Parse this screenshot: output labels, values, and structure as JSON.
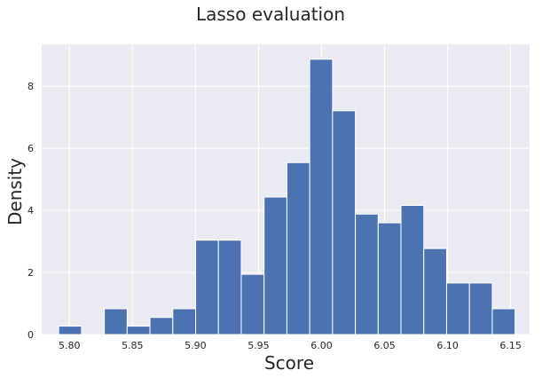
{
  "chart_data": {
    "type": "bar",
    "subtype": "histogram",
    "title": "Lasso evaluation",
    "xlabel": "Score",
    "ylabel": "Density",
    "xlim": [
      5.778,
      6.165
    ],
    "ylim": [
      0,
      9.35
    ],
    "x_ticks": [
      "5.80",
      "5.85",
      "5.90",
      "5.95",
      "6.00",
      "6.05",
      "6.10",
      "6.15"
    ],
    "x_tick_values": [
      5.8,
      5.85,
      5.9,
      5.95,
      6.0,
      6.05,
      6.1,
      6.15
    ],
    "y_ticks": [
      "0",
      "2",
      "4",
      "6",
      "8"
    ],
    "y_tick_values": [
      0,
      2,
      4,
      6,
      8
    ],
    "grid": true,
    "background": "#eaeaf2",
    "bar_color": "#4c72b0",
    "bins": [
      {
        "x0": 5.7915,
        "x1": 5.8096,
        "value": 0.27
      },
      {
        "x0": 5.8096,
        "x1": 5.8277,
        "value": 0.0
      },
      {
        "x0": 5.8277,
        "x1": 5.8458,
        "value": 0.83
      },
      {
        "x0": 5.8458,
        "x1": 5.8639,
        "value": 0.27
      },
      {
        "x0": 5.8639,
        "x1": 5.882,
        "value": 0.55
      },
      {
        "x0": 5.882,
        "x1": 5.9001,
        "value": 0.83
      },
      {
        "x0": 5.9001,
        "x1": 5.9182,
        "value": 3.04
      },
      {
        "x0": 5.9182,
        "x1": 5.9363,
        "value": 3.04
      },
      {
        "x0": 5.9363,
        "x1": 5.9544,
        "value": 1.94
      },
      {
        "x0": 5.9544,
        "x1": 5.9725,
        "value": 4.43
      },
      {
        "x0": 5.9725,
        "x1": 5.9906,
        "value": 5.54
      },
      {
        "x0": 5.9906,
        "x1": 6.0087,
        "value": 8.87
      },
      {
        "x0": 6.0087,
        "x1": 6.0268,
        "value": 7.21
      },
      {
        "x0": 6.0268,
        "x1": 6.0449,
        "value": 3.88
      },
      {
        "x0": 6.0449,
        "x1": 6.063,
        "value": 3.6
      },
      {
        "x0": 6.063,
        "x1": 6.0811,
        "value": 4.16
      },
      {
        "x0": 6.0811,
        "x1": 6.0992,
        "value": 2.77
      },
      {
        "x0": 6.0992,
        "x1": 6.1173,
        "value": 1.66
      },
      {
        "x0": 6.1173,
        "x1": 6.1354,
        "value": 1.66
      },
      {
        "x0": 6.1354,
        "x1": 6.1535,
        "value": 0.83
      }
    ]
  }
}
